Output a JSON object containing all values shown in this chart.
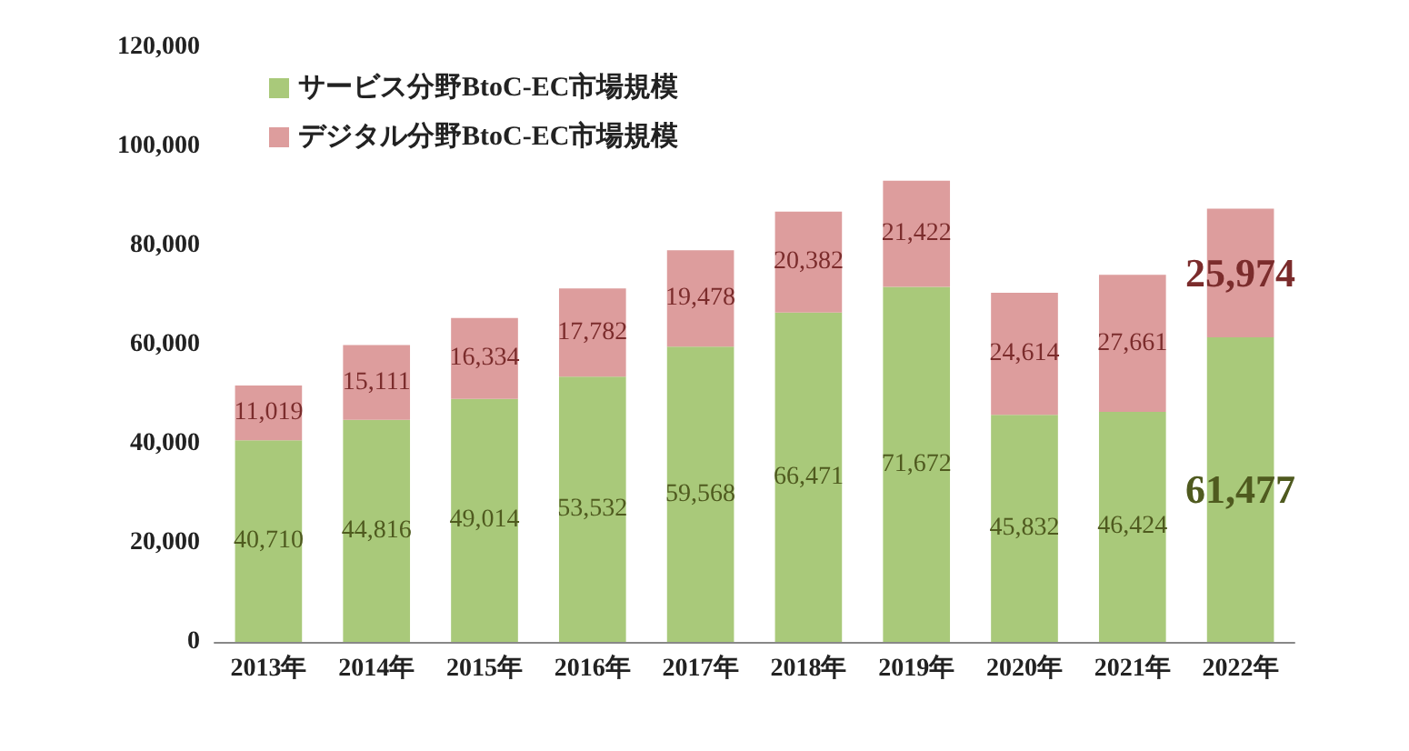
{
  "chart_data": {
    "type": "bar",
    "stacked": true,
    "categories": [
      "2013年",
      "2014年",
      "2015年",
      "2016年",
      "2017年",
      "2018年",
      "2019年",
      "2020年",
      "2021年",
      "2022年"
    ],
    "series": [
      {
        "name": "サービス分野BtoC-EC市場規模",
        "color": "#a9c97a",
        "values": [
          40710,
          44816,
          49014,
          53532,
          59568,
          66471,
          71672,
          45832,
          46424,
          61477
        ],
        "value_labels": [
          "40,710",
          "44,816",
          "49,014",
          "53,532",
          "59,568",
          "66,471",
          "71,672",
          "45,832",
          "46,424",
          "61,477"
        ]
      },
      {
        "name": "デジタル分野BtoC-EC市場規模",
        "color": "#dd9d9d",
        "values": [
          11019,
          15111,
          16334,
          17782,
          19478,
          20382,
          21422,
          24614,
          27661,
          25974
        ],
        "value_labels": [
          "11,019",
          "15,111",
          "16,334",
          "17,782",
          "19,478",
          "20,382",
          "21,422",
          "24,614",
          "27,661",
          "25,974"
        ]
      }
    ],
    "ylim": [
      0,
      120000
    ],
    "yticks": [
      0,
      {
        "value": 20000,
        "label": "20,000"
      },
      {
        "value": 40000,
        "label": "40,000"
      },
      {
        "value": 60000,
        "label": "60,000"
      },
      {
        "value": 80000,
        "label": "80,000"
      },
      {
        "value": 100000,
        "label": "100,000"
      },
      {
        "value": 120000,
        "label": "120,000"
      }
    ],
    "grid": false,
    "legend": "top left"
  }
}
